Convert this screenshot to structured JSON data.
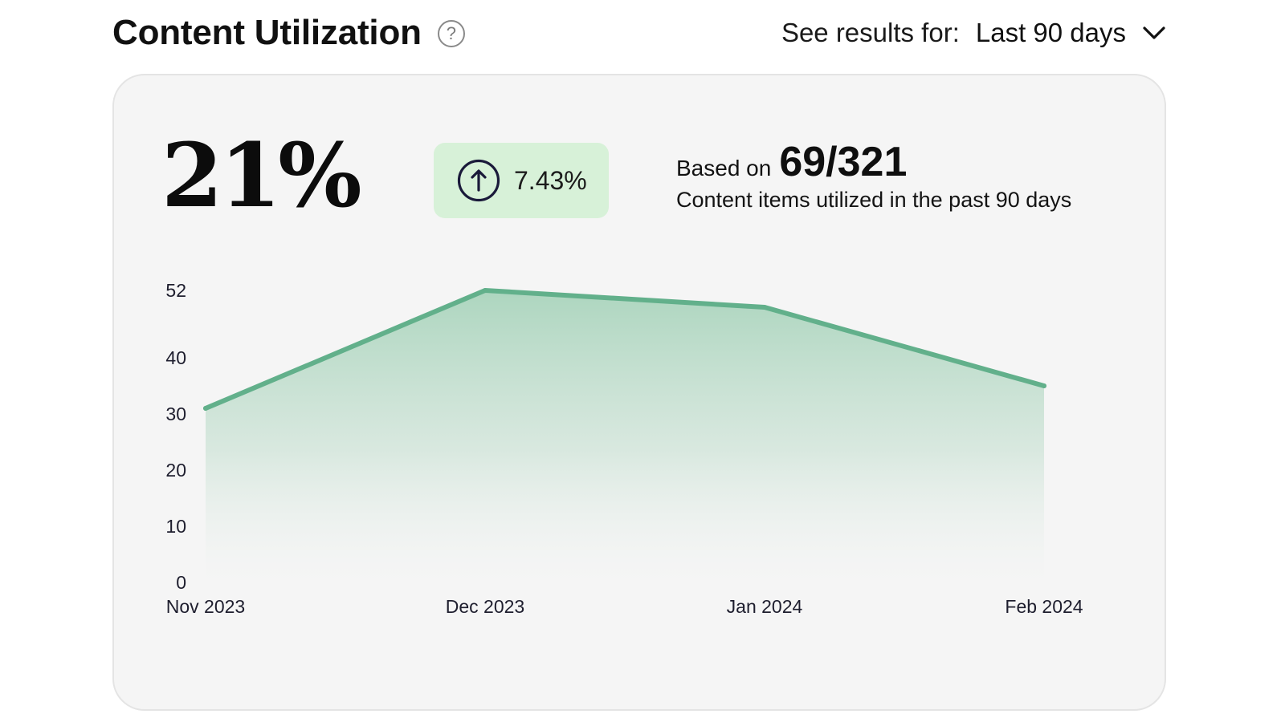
{
  "header": {
    "title": "Content Utilization",
    "help_icon": "question-circle-icon",
    "range_label": "See results for:",
    "range_value": "Last 90 days",
    "range_icon": "chevron-down-icon"
  },
  "summary": {
    "utilization_percent": "21%",
    "change_value": "7.43%",
    "change_icon": "arrow-up-circle-icon",
    "based_on_prefix": "Based on",
    "based_on_ratio": "69/321",
    "based_on_caption": "Content items utilized in the past 90 days"
  },
  "colors": {
    "line": "#62b08b",
    "area_top": "#a9d4bc",
    "badge_bg": "#d7f1d8",
    "icon_stroke": "#1a1a3a"
  },
  "chart_data": {
    "type": "area",
    "categories": [
      "Nov 2023",
      "Dec 2023",
      "Jan 2024",
      "Feb 2024"
    ],
    "values": [
      31,
      52,
      49,
      35
    ],
    "yticks": [
      "52",
      "40",
      "30",
      "20",
      "10",
      "0"
    ],
    "title": "",
    "xlabel": "",
    "ylabel": "",
    "grid": false,
    "legend": false
  }
}
